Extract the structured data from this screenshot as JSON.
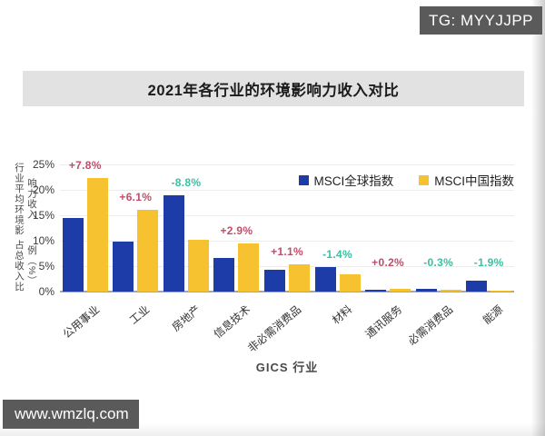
{
  "badges": {
    "tg": "TG: MYYJJPP",
    "site": "www.wmzlq.com"
  },
  "title": "2021年各行业的环境影响力收入对比",
  "chart_data": {
    "type": "bar",
    "title": "2021年各行业的环境影响力收入对比",
    "xlabel": "GICS 行业",
    "ylabel_lines": [
      "行业平均环境影响力收入",
      "占总收入比例（%）"
    ],
    "ylim": [
      0,
      25
    ],
    "grid": true,
    "legend_position": "top-right",
    "yticks": [
      {
        "value": 0,
        "label": "0%"
      },
      {
        "value": 5,
        "label": "5%"
      },
      {
        "value": 10,
        "label": "10%"
      },
      {
        "value": 15,
        "label": "15%"
      },
      {
        "value": 20,
        "label": "20%"
      },
      {
        "value": 25,
        "label": "25%"
      }
    ],
    "categories": [
      "公用事业",
      "工业",
      "房地产",
      "信息技术",
      "非必需消费品",
      "材料",
      "通讯服务",
      "必需消费品",
      "能源"
    ],
    "series": [
      {
        "name": "MSCI全球指数",
        "color": "#1e3ca8",
        "values": [
          14.5,
          9.9,
          19.0,
          6.6,
          4.3,
          4.8,
          0.3,
          0.6,
          2.1
        ]
      },
      {
        "name": "MSCI中国指数",
        "color": "#f6c230",
        "values": [
          22.3,
          16.0,
          10.2,
          9.5,
          5.4,
          3.4,
          0.5,
          0.3,
          0.2
        ]
      }
    ],
    "diff_labels": [
      {
        "text": "+7.8%",
        "color": "#c04e6a"
      },
      {
        "text": "+6.1%",
        "color": "#c04e6a"
      },
      {
        "text": "-8.8%",
        "color": "#35c2a5"
      },
      {
        "text": "+2.9%",
        "color": "#c04e6a"
      },
      {
        "text": "+1.1%",
        "color": "#c04e6a"
      },
      {
        "text": "-1.4%",
        "color": "#35c2a5"
      },
      {
        "text": "+0.2%",
        "color": "#c04e6a"
      },
      {
        "text": "-0.3%",
        "color": "#35c2a5"
      },
      {
        "text": "-1.9%",
        "color": "#35c2a5"
      }
    ]
  }
}
